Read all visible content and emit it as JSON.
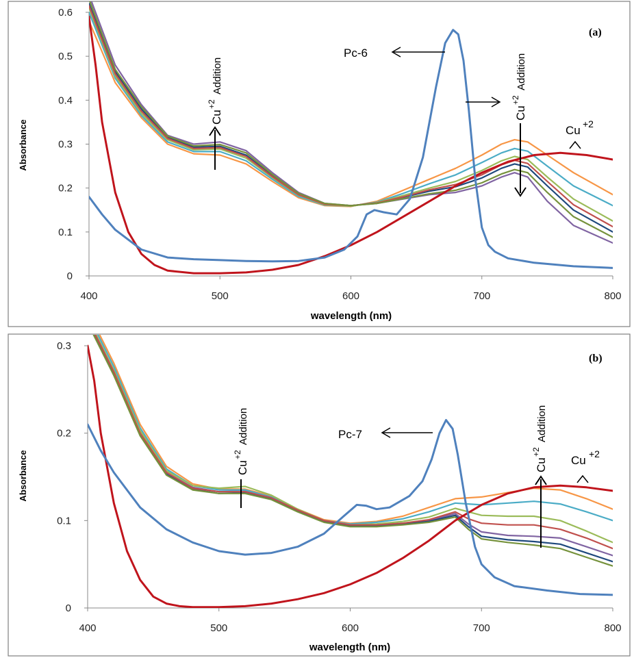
{
  "chart_data": [
    {
      "type": "line",
      "panel_label": "(a)",
      "xlabel": "wavelength (nm)",
      "ylabel": "Absorbance",
      "xlim": [
        400,
        800
      ],
      "ylim": [
        0,
        0.6
      ],
      "x_ticks": [
        "400",
        "500",
        "600",
        "700",
        "800"
      ],
      "y_ticks": [
        "0",
        "0.1",
        "0.2",
        "0.3",
        "0.4",
        "0.5",
        "0.6"
      ],
      "grid": false,
      "annotations": {
        "pc_label": "Pc-6",
        "cu_label": "Cu",
        "cu_sup": "+2",
        "addition_cu": "Cu",
        "addition_sup": "+2",
        "addition_word": "Addition"
      },
      "series": [
        {
          "name": "Pc-6",
          "color": "#4f81bd",
          "x": [
            400,
            410,
            420,
            440,
            460,
            480,
            500,
            520,
            540,
            560,
            580,
            595,
            605,
            612,
            618,
            625,
            635,
            645,
            655,
            665,
            672,
            678,
            682,
            686,
            690,
            695,
            700,
            705,
            710,
            720,
            740,
            770,
            800
          ],
          "y": [
            0.18,
            0.14,
            0.105,
            0.06,
            0.042,
            0.038,
            0.036,
            0.034,
            0.033,
            0.034,
            0.042,
            0.06,
            0.09,
            0.14,
            0.15,
            0.145,
            0.14,
            0.175,
            0.27,
            0.43,
            0.53,
            0.56,
            0.55,
            0.49,
            0.38,
            0.22,
            0.11,
            0.07,
            0.055,
            0.04,
            0.03,
            0.022,
            0.018
          ]
        },
        {
          "name": "Cu+2",
          "color": "#c0141c",
          "x": [
            400,
            405,
            410,
            420,
            430,
            440,
            450,
            460,
            480,
            500,
            520,
            540,
            560,
            580,
            600,
            620,
            640,
            660,
            680,
            700,
            720,
            740,
            760,
            780,
            800
          ],
          "y": [
            0.59,
            0.48,
            0.35,
            0.19,
            0.1,
            0.05,
            0.025,
            0.012,
            0.006,
            0.006,
            0.008,
            0.014,
            0.025,
            0.045,
            0.07,
            0.1,
            0.135,
            0.17,
            0.205,
            0.235,
            0.26,
            0.275,
            0.28,
            0.275,
            0.265
          ]
        },
        {
          "name": "",
          "color": "#8064a2",
          "x": [
            400,
            420,
            440,
            460,
            480,
            500,
            520,
            540,
            560,
            580,
            600,
            620,
            640,
            660,
            680,
            700,
            715,
            725,
            735,
            750,
            770,
            800
          ],
          "y": [
            0.64,
            0.48,
            0.39,
            0.32,
            0.3,
            0.305,
            0.285,
            0.235,
            0.19,
            0.165,
            0.16,
            0.165,
            0.175,
            0.185,
            0.19,
            0.205,
            0.225,
            0.235,
            0.225,
            0.17,
            0.115,
            0.075
          ]
        },
        {
          "name": "",
          "color": "#f79646",
          "x": [
            400,
            420,
            440,
            460,
            480,
            500,
            520,
            540,
            560,
            580,
            600,
            620,
            640,
            660,
            680,
            700,
            715,
            725,
            735,
            750,
            770,
            800
          ],
          "y": [
            0.58,
            0.44,
            0.36,
            0.3,
            0.278,
            0.275,
            0.255,
            0.215,
            0.178,
            0.16,
            0.158,
            0.17,
            0.195,
            0.22,
            0.245,
            0.275,
            0.3,
            0.31,
            0.305,
            0.275,
            0.235,
            0.185
          ]
        },
        {
          "name": "",
          "color": "#4bacc6",
          "x": [
            400,
            420,
            440,
            460,
            480,
            500,
            520,
            540,
            560,
            580,
            600,
            620,
            640,
            660,
            680,
            700,
            715,
            725,
            735,
            750,
            770,
            800
          ],
          "y": [
            0.6,
            0.45,
            0.365,
            0.305,
            0.283,
            0.283,
            0.262,
            0.22,
            0.181,
            0.161,
            0.159,
            0.168,
            0.188,
            0.21,
            0.23,
            0.258,
            0.28,
            0.29,
            0.284,
            0.25,
            0.205,
            0.16
          ]
        },
        {
          "name": "",
          "color": "#9bbb59",
          "x": [
            400,
            420,
            440,
            460,
            480,
            500,
            520,
            540,
            560,
            580,
            600,
            620,
            640,
            660,
            680,
            700,
            715,
            725,
            735,
            750,
            770,
            800
          ],
          "y": [
            0.61,
            0.455,
            0.37,
            0.31,
            0.287,
            0.289,
            0.268,
            0.224,
            0.184,
            0.162,
            0.159,
            0.167,
            0.183,
            0.2,
            0.215,
            0.24,
            0.262,
            0.272,
            0.265,
            0.225,
            0.175,
            0.125
          ]
        },
        {
          "name": "",
          "color": "#1f497d",
          "x": [
            400,
            420,
            440,
            460,
            480,
            500,
            520,
            540,
            560,
            580,
            600,
            620,
            640,
            660,
            680,
            700,
            715,
            725,
            735,
            750,
            770,
            800
          ],
          "y": [
            0.62,
            0.465,
            0.38,
            0.315,
            0.293,
            0.295,
            0.275,
            0.228,
            0.186,
            0.164,
            0.16,
            0.166,
            0.179,
            0.193,
            0.203,
            0.223,
            0.245,
            0.255,
            0.248,
            0.205,
            0.15,
            0.1
          ]
        },
        {
          "name": "",
          "color": "#c0504d",
          "x": [
            400,
            420,
            440,
            460,
            480,
            500,
            520,
            540,
            560,
            580,
            600,
            620,
            640,
            660,
            680,
            700,
            715,
            725,
            735,
            750,
            770,
            800
          ],
          "y": [
            0.615,
            0.46,
            0.375,
            0.313,
            0.29,
            0.292,
            0.272,
            0.226,
            0.185,
            0.163,
            0.16,
            0.166,
            0.18,
            0.196,
            0.208,
            0.23,
            0.253,
            0.263,
            0.256,
            0.215,
            0.162,
            0.112
          ]
        },
        {
          "name": "",
          "color": "#76923c",
          "x": [
            400,
            420,
            440,
            460,
            480,
            500,
            520,
            540,
            560,
            580,
            600,
            620,
            640,
            660,
            680,
            700,
            715,
            725,
            735,
            750,
            770,
            800
          ],
          "y": [
            0.63,
            0.47,
            0.385,
            0.318,
            0.296,
            0.299,
            0.28,
            0.231,
            0.188,
            0.165,
            0.16,
            0.165,
            0.176,
            0.187,
            0.195,
            0.212,
            0.232,
            0.242,
            0.235,
            0.19,
            0.135,
            0.088
          ]
        }
      ]
    },
    {
      "type": "line",
      "panel_label": "(b)",
      "xlabel": "wavelength (nm)",
      "ylabel": "Absorbance",
      "xlim": [
        400,
        800
      ],
      "ylim": [
        0,
        0.3
      ],
      "x_ticks": [
        "400",
        "500",
        "600",
        "700",
        "800"
      ],
      "y_ticks": [
        "0",
        "0.1",
        "0.2",
        "0.3"
      ],
      "grid": false,
      "annotations": {
        "pc_label": "Pc-7",
        "cu_label": "Cu",
        "cu_sup": "+2",
        "addition_cu": "Cu",
        "addition_sup": "+2",
        "addition_word": "Addition"
      },
      "series": [
        {
          "name": "Pc-7",
          "color": "#4f81bd",
          "x": [
            400,
            410,
            420,
            440,
            460,
            480,
            500,
            520,
            540,
            560,
            580,
            595,
            605,
            612,
            620,
            630,
            645,
            655,
            662,
            668,
            673,
            678,
            682,
            688,
            695,
            700,
            710,
            725,
            750,
            775,
            800
          ],
          "y": [
            0.21,
            0.18,
            0.155,
            0.115,
            0.09,
            0.075,
            0.065,
            0.061,
            0.063,
            0.07,
            0.085,
            0.105,
            0.118,
            0.117,
            0.113,
            0.115,
            0.128,
            0.145,
            0.17,
            0.2,
            0.215,
            0.205,
            0.175,
            0.12,
            0.07,
            0.05,
            0.035,
            0.025,
            0.02,
            0.016,
            0.015
          ]
        },
        {
          "name": "Cu+2",
          "color": "#c0141c",
          "x": [
            400,
            405,
            410,
            420,
            430,
            440,
            450,
            460,
            470,
            480,
            500,
            520,
            540,
            560,
            580,
            600,
            620,
            640,
            660,
            680,
            700,
            720,
            740,
            760,
            780,
            800
          ],
          "y": [
            0.3,
            0.26,
            0.2,
            0.12,
            0.065,
            0.032,
            0.013,
            0.005,
            0.002,
            0.001,
            0.001,
            0.002,
            0.005,
            0.01,
            0.017,
            0.027,
            0.04,
            0.057,
            0.077,
            0.1,
            0.118,
            0.131,
            0.138,
            0.14,
            0.138,
            0.134
          ]
        },
        {
          "name": "",
          "color": "#8064a2",
          "x": [
            400,
            410,
            420,
            440,
            460,
            480,
            500,
            520,
            540,
            560,
            580,
            600,
            620,
            640,
            660,
            680,
            690,
            700,
            720,
            740,
            760,
            780,
            800
          ],
          "y": [
            0.33,
            0.3,
            0.27,
            0.2,
            0.155,
            0.138,
            0.133,
            0.134,
            0.126,
            0.112,
            0.1,
            0.095,
            0.095,
            0.097,
            0.1,
            0.108,
            0.096,
            0.087,
            0.083,
            0.082,
            0.08,
            0.07,
            0.06
          ]
        },
        {
          "name": "",
          "color": "#f79646",
          "x": [
            400,
            410,
            420,
            440,
            460,
            480,
            500,
            520,
            540,
            560,
            580,
            600,
            620,
            640,
            660,
            680,
            690,
            700,
            720,
            740,
            760,
            780,
            800
          ],
          "y": [
            0.34,
            0.31,
            0.28,
            0.21,
            0.162,
            0.142,
            0.136,
            0.136,
            0.128,
            0.113,
            0.101,
            0.097,
            0.099,
            0.105,
            0.115,
            0.125,
            0.126,
            0.127,
            0.132,
            0.137,
            0.135,
            0.125,
            0.113
          ]
        },
        {
          "name": "",
          "color": "#4bacc6",
          "x": [
            400,
            410,
            420,
            440,
            460,
            480,
            500,
            520,
            540,
            560,
            580,
            600,
            620,
            640,
            660,
            680,
            690,
            700,
            720,
            740,
            760,
            780,
            800
          ],
          "y": [
            0.336,
            0.306,
            0.276,
            0.206,
            0.159,
            0.14,
            0.135,
            0.135,
            0.127,
            0.112,
            0.1,
            0.096,
            0.098,
            0.102,
            0.11,
            0.12,
            0.119,
            0.118,
            0.12,
            0.122,
            0.119,
            0.11,
            0.1
          ]
        },
        {
          "name": "",
          "color": "#9bbb59",
          "x": [
            400,
            410,
            420,
            440,
            460,
            480,
            500,
            520,
            540,
            560,
            580,
            600,
            620,
            640,
            660,
            680,
            690,
            700,
            720,
            740,
            760,
            780,
            800
          ],
          "y": [
            0.332,
            0.302,
            0.272,
            0.203,
            0.157,
            0.14,
            0.137,
            0.139,
            0.129,
            0.113,
            0.1,
            0.095,
            0.096,
            0.099,
            0.104,
            0.114,
            0.11,
            0.106,
            0.105,
            0.105,
            0.1,
            0.088,
            0.075
          ]
        },
        {
          "name": "",
          "color": "#1f497d",
          "x": [
            400,
            410,
            420,
            440,
            460,
            480,
            500,
            520,
            540,
            560,
            580,
            600,
            620,
            640,
            660,
            680,
            690,
            700,
            720,
            740,
            760,
            780,
            800
          ],
          "y": [
            0.328,
            0.298,
            0.268,
            0.198,
            0.153,
            0.136,
            0.131,
            0.132,
            0.125,
            0.111,
            0.099,
            0.094,
            0.094,
            0.096,
            0.099,
            0.106,
            0.093,
            0.082,
            0.078,
            0.076,
            0.073,
            0.063,
            0.053
          ]
        },
        {
          "name": "",
          "color": "#c0504d",
          "x": [
            400,
            410,
            420,
            440,
            460,
            480,
            500,
            520,
            540,
            560,
            580,
            600,
            620,
            640,
            660,
            680,
            690,
            700,
            720,
            740,
            760,
            780,
            800
          ],
          "y": [
            0.33,
            0.3,
            0.27,
            0.2,
            0.155,
            0.137,
            0.133,
            0.133,
            0.126,
            0.112,
            0.1,
            0.095,
            0.095,
            0.097,
            0.101,
            0.11,
            0.102,
            0.097,
            0.095,
            0.095,
            0.09,
            0.08,
            0.068
          ]
        },
        {
          "name": "",
          "color": "#76923c",
          "x": [
            400,
            410,
            420,
            440,
            460,
            480,
            500,
            520,
            540,
            560,
            580,
            600,
            620,
            640,
            660,
            680,
            690,
            700,
            720,
            740,
            760,
            780,
            800
          ],
          "y": [
            0.326,
            0.296,
            0.266,
            0.197,
            0.152,
            0.135,
            0.131,
            0.131,
            0.124,
            0.11,
            0.098,
            0.093,
            0.093,
            0.095,
            0.098,
            0.104,
            0.09,
            0.079,
            0.075,
            0.072,
            0.068,
            0.058,
            0.048
          ]
        }
      ]
    }
  ]
}
